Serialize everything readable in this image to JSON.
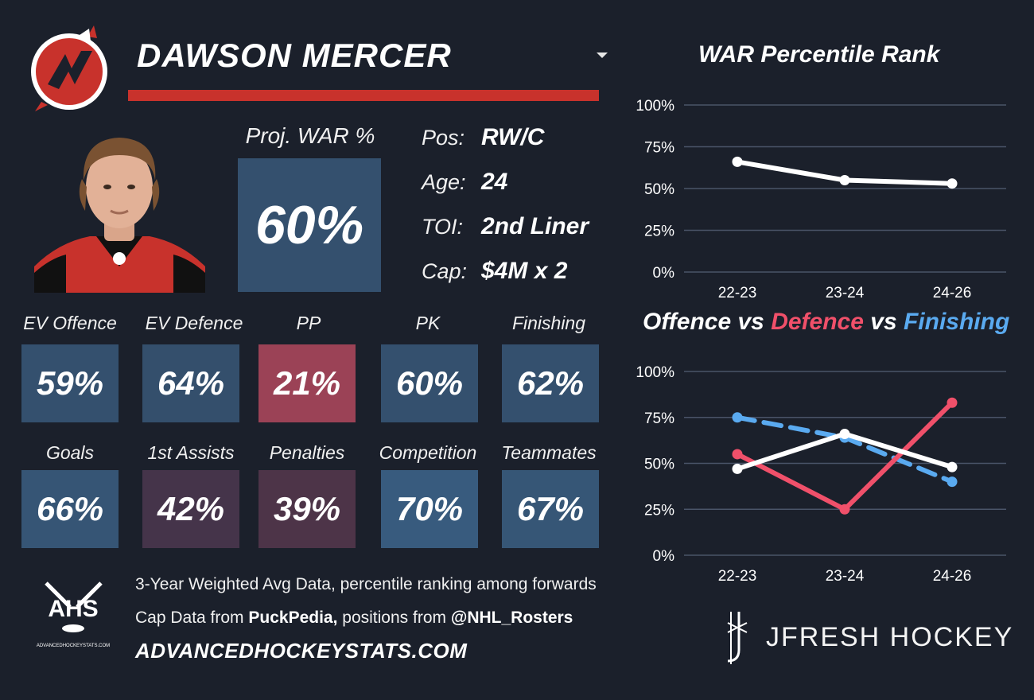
{
  "player": {
    "name": "DAWSON MERCER",
    "proj_war_label": "Proj. WAR %",
    "proj_war_value": "60%",
    "info": [
      {
        "key": "Pos:",
        "value": "RW/C"
      },
      {
        "key": "Age:",
        "value": "24"
      },
      {
        "key": "TOI:",
        "value": "2nd Liner"
      },
      {
        "key": "Cap:",
        "value": "$4M x 2"
      }
    ]
  },
  "stats_row1": [
    {
      "label": "EV Offence",
      "value": "59%",
      "color": "#34506e"
    },
    {
      "label": "EV Defence",
      "value": "64%",
      "color": "#344f6c"
    },
    {
      "label": "PP",
      "value": "21%",
      "color": "#9b4256"
    },
    {
      "label": "PK",
      "value": "60%",
      "color": "#34506e"
    },
    {
      "label": "Finishing",
      "value": "62%",
      "color": "#34506e"
    }
  ],
  "stats_row2": [
    {
      "label": "Goals",
      "value": "66%",
      "color": "#365575"
    },
    {
      "label": "1st Assists",
      "value": "42%",
      "color": "#45344a"
    },
    {
      "label": "Penalties",
      "value": "39%",
      "color": "#4d3448"
    },
    {
      "label": "Competition",
      "value": "70%",
      "color": "#385b7e"
    },
    {
      "label": "Teammates",
      "value": "67%",
      "color": "#365676"
    }
  ],
  "chart_data": [
    {
      "type": "line",
      "title": "WAR Percentile Rank",
      "categories": [
        "22-23",
        "23-24",
        "24-26"
      ],
      "yticks": [
        "100%",
        "75%",
        "50%",
        "25%",
        "0%"
      ],
      "ylim": [
        0,
        100
      ],
      "grid": true,
      "series": [
        {
          "values": [
            66,
            55,
            53
          ],
          "color": "#ffffff",
          "dashed": false
        }
      ]
    },
    {
      "type": "line",
      "title_parts": [
        {
          "text": "Offence",
          "color": "#ffffff"
        },
        {
          "text": " vs ",
          "color": "#ffffff"
        },
        {
          "text": "Defence",
          "color": "#f0506a"
        },
        {
          "text": " vs ",
          "color": "#ffffff"
        },
        {
          "text": "Finishing",
          "color": "#5aaaf0"
        }
      ],
      "categories": [
        "22-23",
        "23-24",
        "24-26"
      ],
      "yticks": [
        "100%",
        "75%",
        "50%",
        "25%",
        "0%"
      ],
      "ylim": [
        0,
        100
      ],
      "grid": true,
      "series": [
        {
          "values": [
            75,
            64,
            40
          ],
          "color": "#5aaaf0",
          "dashed": true
        },
        {
          "values": [
            55,
            25,
            83
          ],
          "color": "#f0506a",
          "dashed": false
        },
        {
          "values": [
            47,
            66,
            48
          ],
          "color": "#ffffff",
          "dashed": false
        }
      ]
    }
  ],
  "footer": {
    "line1": "3-Year Weighted Avg Data, percentile ranking among forwards",
    "line2_prefix": "Cap Data from ",
    "line2_bold1": "PuckPedia,",
    "line2_mid": " positions from ",
    "line2_bold2": "@NHL_Rosters",
    "site": "ADVANCEDHOCKEYSTATS.COM",
    "ahs_logo_text": "AHS",
    "ahs_logo_small": "ADVANCEDHOCKEYSTATS.COM",
    "brand": "JFRESH HOCKEY"
  }
}
